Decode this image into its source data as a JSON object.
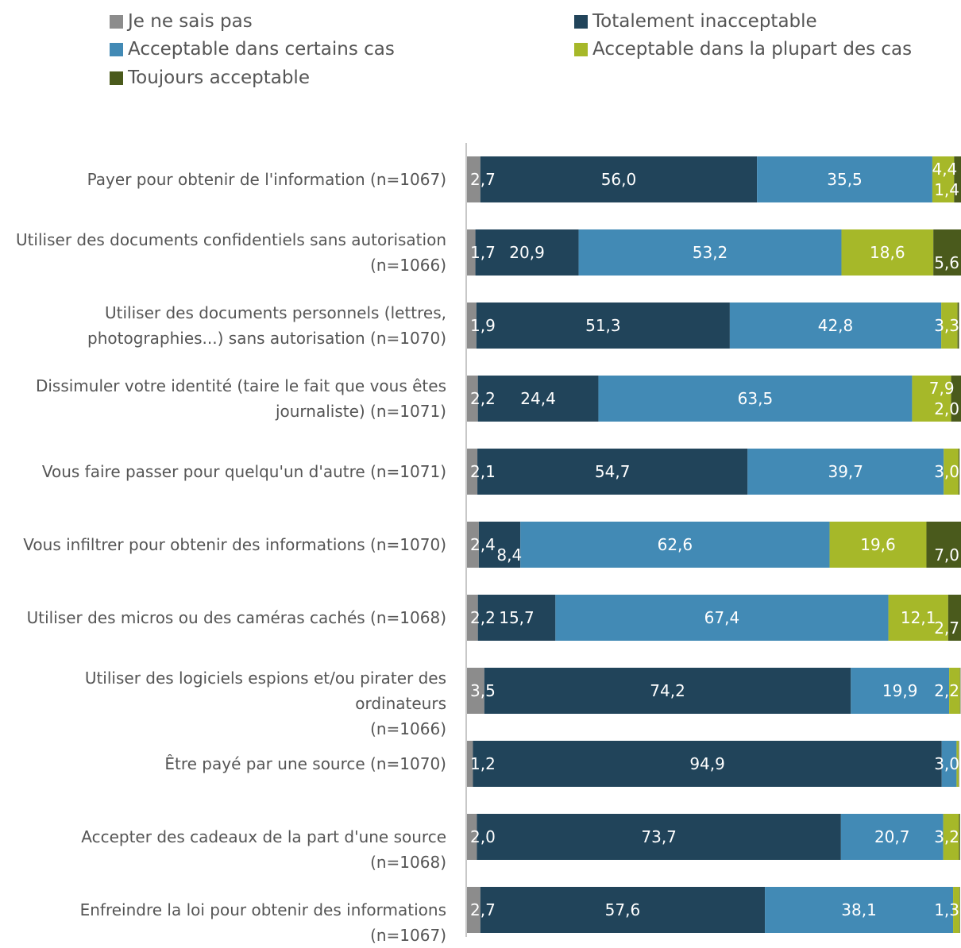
{
  "chart_data": {
    "type": "bar",
    "orientation": "horizontal",
    "stacked": true,
    "xlim": [
      0,
      100
    ],
    "legend_position": "top",
    "categories": [
      "Payer pour obtenir de l'information (n=1067)",
      "Utiliser des documents confidentiels sans autorisation (n=1066)",
      "Utiliser des documents personnels (lettres, photographies...) sans autorisation (n=1070)",
      "Dissimuler votre identité (taire le fait que vous êtes journaliste) (n=1071)",
      "Vous faire passer pour quelqu'un d'autre (n=1071)",
      "Vous infiltrer pour obtenir des informations (n=1070)",
      "Utiliser des micros ou des caméras cachés (n=1068)",
      "Utiliser des logiciels espions et/ou pirater des ordinateurs (n=1066)",
      "Être payé par une source (n=1070)",
      "Accepter des cadeaux de la part d'une source (n=1068)",
      "Enfreindre la loi pour obtenir des informations (n=1067)"
    ],
    "category_lines": [
      [
        "Payer pour obtenir de l'information (n=1067)"
      ],
      [
        "Utiliser des documents confidentiels sans autorisation",
        "(n=1066)"
      ],
      [
        "Utiliser des documents personnels (lettres,",
        "photographies...) sans autorisation (n=1070)"
      ],
      [
        "Dissimuler votre identité (taire le fait que vous êtes",
        "journaliste) (n=1071)"
      ],
      [
        "Vous faire passer pour quelqu'un d'autre (n=1071)"
      ],
      [
        "Vous infiltrer pour obtenir des informations (n=1070)"
      ],
      [
        "Utiliser des micros ou des caméras cachés (n=1068)"
      ],
      [
        "Utiliser des logiciels espions et/ou pirater des ordinateurs",
        "(n=1066)"
      ],
      [
        "Être payé par une source (n=1070)"
      ],
      [
        "Accepter des cadeaux de la part d'une source (n=1068)"
      ],
      [
        "Enfreindre la loi pour obtenir des informations (n=1067)"
      ]
    ],
    "series": [
      {
        "name": "Je ne sais pas",
        "color": "#8c8c8c",
        "values": [
          2.7,
          1.7,
          1.9,
          2.2,
          2.1,
          2.4,
          2.2,
          3.5,
          1.2,
          2.0,
          2.7
        ],
        "labels": [
          "2,7",
          "1,7",
          "1,9",
          "2,2",
          "2,1",
          "2,4",
          "2,2",
          "3,5",
          "1,2",
          "2,0",
          "2,7"
        ]
      },
      {
        "name": "Totalement inacceptable",
        "color": "#21445a",
        "values": [
          56.0,
          20.9,
          51.3,
          24.4,
          54.7,
          8.4,
          15.7,
          74.2,
          94.9,
          73.7,
          57.6
        ],
        "labels": [
          "56,0",
          "20,9",
          "51,3",
          "24,4",
          "54,7",
          "8,4",
          "15,7",
          "74,2",
          "94,9",
          "73,7",
          "57,6"
        ]
      },
      {
        "name": "Acceptable dans certains cas",
        "color": "#428ab5",
        "values": [
          35.5,
          53.2,
          42.8,
          63.5,
          39.7,
          62.6,
          67.4,
          19.9,
          3.0,
          20.7,
          38.1
        ],
        "labels": [
          "35,5",
          "53,2",
          "42,8",
          "63,5",
          "39,7",
          "62,6",
          "67,4",
          "19,9",
          "3,0",
          "20,7",
          "38,1"
        ]
      },
      {
        "name": "Acceptable dans la plupart des cas",
        "color": "#a6b829",
        "values": [
          4.4,
          18.6,
          3.3,
          7.9,
          3.0,
          19.6,
          12.1,
          2.2,
          0.4,
          3.2,
          1.3
        ],
        "labels": [
          "4,4",
          "18,6",
          "3,3",
          "7,9",
          "3,0",
          "19,6",
          "12,1",
          "2,2",
          "",
          "3,2",
          "1,3"
        ]
      },
      {
        "name": "Toujours acceptable",
        "color": "#4a5a1c",
        "values": [
          1.4,
          5.6,
          0.3,
          2.0,
          0.2,
          7.0,
          2.7,
          0.1,
          0.1,
          0.2,
          0.1
        ],
        "labels": [
          "1,4",
          "5,6",
          "",
          "2,0",
          "",
          "7,0",
          "2,7",
          "",
          "",
          "",
          ""
        ]
      }
    ]
  }
}
